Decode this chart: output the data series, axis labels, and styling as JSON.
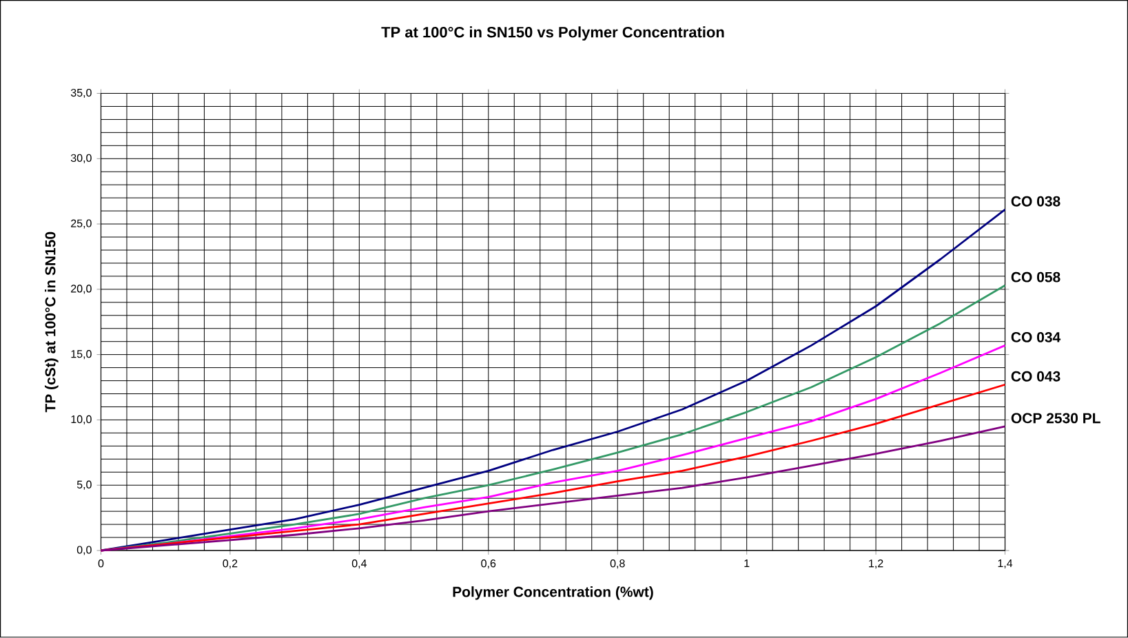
{
  "chart_data": {
    "type": "line",
    "title": "TP at 100°C in SN150 vs Polymer Concentration",
    "xlabel": "Polymer Concentration (%wt)",
    "ylabel": "TP (cSt) at 100°C in SN150",
    "x": [
      0,
      0.1,
      0.2,
      0.3,
      0.4,
      0.5,
      0.6,
      0.7,
      0.8,
      0.9,
      1.0,
      1.1,
      1.2,
      1.3,
      1.4
    ],
    "series": [
      {
        "name": "CO 038",
        "color": "#000080",
        "values": [
          0,
          0.8,
          1.6,
          2.4,
          3.5,
          4.8,
          6.1,
          7.7,
          9.1,
          10.8,
          13.0,
          15.7,
          18.7,
          22.3,
          26.1
        ]
      },
      {
        "name": "CO 058",
        "color": "#339966",
        "values": [
          0,
          0.6,
          1.3,
          2.0,
          2.8,
          4.0,
          5.0,
          6.2,
          7.5,
          8.9,
          10.6,
          12.5,
          14.8,
          17.4,
          20.3
        ]
      },
      {
        "name": "CO 034",
        "color": "#ff00ff",
        "values": [
          0,
          0.5,
          1.1,
          1.7,
          2.4,
          3.3,
          4.1,
          5.2,
          6.1,
          7.3,
          8.6,
          9.9,
          11.6,
          13.6,
          15.7
        ]
      },
      {
        "name": "CO 043",
        "color": "#ff0000",
        "values": [
          0,
          0.5,
          1.0,
          1.5,
          2.0,
          2.8,
          3.6,
          4.4,
          5.3,
          6.1,
          7.2,
          8.4,
          9.7,
          11.2,
          12.7
        ]
      },
      {
        "name": "OCP 2530 PL",
        "color": "#800080",
        "values": [
          0,
          0.4,
          0.8,
          1.2,
          1.7,
          2.3,
          3.0,
          3.6,
          4.2,
          4.8,
          5.6,
          6.5,
          7.4,
          8.4,
          9.5
        ]
      }
    ],
    "xlim": [
      0,
      1.4
    ],
    "ylim": [
      0,
      35
    ],
    "xticks": [
      0,
      {
        "value": 0.2,
        "label": "0,2"
      },
      {
        "value": 0.4,
        "label": "0,4"
      },
      {
        "value": 0.6,
        "label": "0,6"
      },
      {
        "value": 0.8,
        "label": "0,8"
      },
      1,
      {
        "value": 1.2,
        "label": "1,2"
      },
      {
        "value": 1.4,
        "label": "1,4"
      }
    ],
    "yticks": [
      {
        "value": 0,
        "label": "0,0"
      },
      {
        "value": 5,
        "label": "5,0"
      },
      {
        "value": 10,
        "label": "10,0"
      },
      {
        "value": 15,
        "label": "15,0"
      },
      {
        "value": 20,
        "label": "20,0"
      },
      {
        "value": 25,
        "label": "25,0"
      },
      {
        "value": 30,
        "label": "30,0"
      },
      {
        "value": 35,
        "label": "35,0"
      }
    ],
    "grid": true,
    "legend": false,
    "marker": "none"
  }
}
